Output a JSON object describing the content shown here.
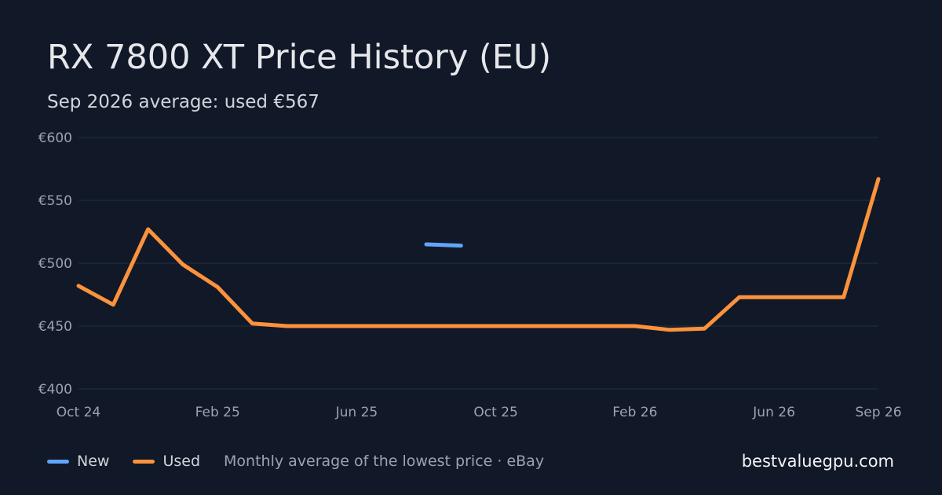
{
  "header": {
    "title": "RX 7800 XT Price History (EU)",
    "subtitle": "Sep 2026 average: used €567"
  },
  "footer": {
    "note": "Monthly average of the lowest price · eBay",
    "site": "bestvaluegpu.com"
  },
  "colors": {
    "background": "#111827",
    "grid": "#1f2937",
    "new": "#60a5fa",
    "used": "#fb923c"
  },
  "chart_data": {
    "type": "line",
    "title": "RX 7800 XT Price History (EU)",
    "subtitle": "Sep 2026 average: used €567",
    "x": [
      "2024-10",
      "2024-11",
      "2024-12",
      "2025-01",
      "2025-02",
      "2025-03",
      "2025-04",
      "2025-05",
      "2025-06",
      "2025-07",
      "2025-08",
      "2025-09",
      "2025-10",
      "2025-11",
      "2025-12",
      "2026-01",
      "2026-02",
      "2026-03",
      "2026-04",
      "2026-05",
      "2026-06",
      "2026-07",
      "2026-08",
      "2026-09"
    ],
    "x_ticks": [
      {
        "x": "2024-10",
        "label": "Oct 24"
      },
      {
        "x": "2025-02",
        "label": "Feb 25"
      },
      {
        "x": "2025-06",
        "label": "Jun 25"
      },
      {
        "x": "2025-10",
        "label": "Oct 25"
      },
      {
        "x": "2026-02",
        "label": "Feb 26"
      },
      {
        "x": "2026-06",
        "label": "Jun 26"
      },
      {
        "x": "2026-09",
        "label": "Sep 26"
      }
    ],
    "y_ticks": [
      {
        "value": 400,
        "label": "€400"
      },
      {
        "value": 450,
        "label": "€450"
      },
      {
        "value": 500,
        "label": "€500"
      },
      {
        "value": 550,
        "label": "€550"
      },
      {
        "value": 600,
        "label": "€600"
      }
    ],
    "ylim": [
      400,
      600
    ],
    "grid": true,
    "legend": "bottom-left",
    "series": [
      {
        "name": "New",
        "color": "#60a5fa",
        "values": [
          null,
          null,
          null,
          null,
          null,
          null,
          null,
          null,
          null,
          null,
          515,
          514,
          null,
          null,
          null,
          null,
          null,
          null,
          null,
          null,
          null,
          null,
          null,
          null
        ]
      },
      {
        "name": "Used",
        "color": "#fb923c",
        "values": [
          482,
          467,
          527,
          499,
          481,
          452,
          450,
          450,
          450,
          450,
          450,
          450,
          450,
          450,
          450,
          450,
          450,
          447,
          448,
          473,
          473,
          473,
          473,
          567
        ]
      }
    ]
  }
}
